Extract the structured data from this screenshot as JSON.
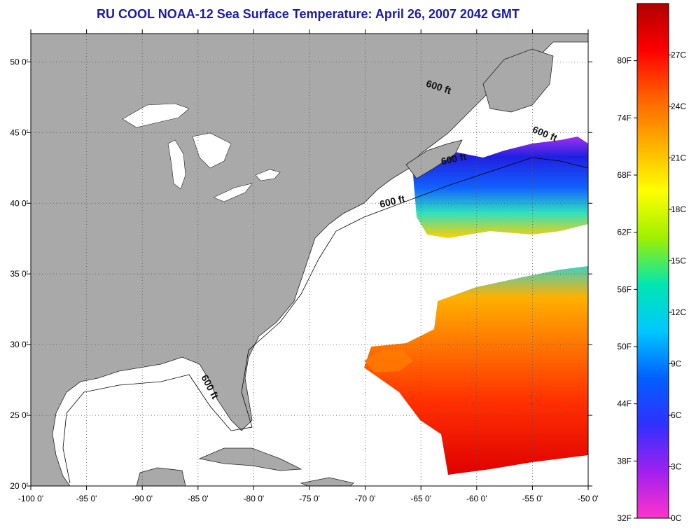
{
  "title": "RU COOL  NOAA-12  Sea Surface Temperature:  April 26, 2007 2042 GMT",
  "map": {
    "lon_range": [
      -100,
      -50
    ],
    "lat_range": [
      20,
      52
    ],
    "lon_ticks": [
      -100,
      -95,
      -90,
      -85,
      -80,
      -75,
      -70,
      -65,
      -60,
      -55,
      -50
    ],
    "lat_ticks": [
      20,
      25,
      30,
      35,
      40,
      45,
      50
    ],
    "lon_tick_labels": [
      "-100 0'",
      "-95 0'",
      "-90 0'",
      "-85 0'",
      "-80 0'",
      "-75 0'",
      "-70 0'",
      "-65 0'",
      "-60 0'",
      "-55 0'",
      "-50 0'"
    ],
    "lat_tick_labels": [
      "20 0'",
      "25 0'",
      "30 0'",
      "35 0'",
      "40 0'",
      "45 0'",
      "50 0'"
    ],
    "grid": "dotted",
    "depth_contour_labels": [
      {
        "text": "600 ft",
        "lon": -63.5,
        "lat": 48.0,
        "rotate": 18
      },
      {
        "text": "600 ft",
        "lon": -54.0,
        "lat": 44.7,
        "rotate": 22
      },
      {
        "text": "600 ft",
        "lon": -62.0,
        "lat": 42.9,
        "rotate": -12
      },
      {
        "text": "600 ft",
        "lon": -67.5,
        "lat": 39.9,
        "rotate": -14
      },
      {
        "text": "600 ft",
        "lon": -84.2,
        "lat": 26.9,
        "rotate": 62
      }
    ]
  },
  "colorbar": {
    "range_f": [
      32,
      86
    ],
    "f_labels": [
      "80F",
      "74F",
      "68F",
      "62F",
      "56F",
      "50F",
      "44F",
      "38F",
      "32F"
    ],
    "f_values": [
      80,
      74,
      68,
      62,
      56,
      50,
      44,
      38,
      32
    ],
    "c_labels": [
      "27C",
      "24C",
      "21C",
      "18C",
      "15C",
      "12C",
      "9C",
      "6C",
      "3C",
      "0C"
    ],
    "c_values": [
      27,
      24,
      21,
      18,
      15,
      12,
      9,
      6,
      3,
      0
    ],
    "colors": [
      "#ff33cc",
      "#a020f0",
      "#3030ff",
      "#0060ff",
      "#00c8ff",
      "#00e6b0",
      "#a0f000",
      "#ffff00",
      "#ffb000",
      "#ff6000",
      "#ff0000",
      "#b00000"
    ]
  },
  "legend_colors": {
    "land": "#a9a9a9",
    "ocean_nodata": "#ffffff",
    "title_color": "#1a1aa8"
  }
}
